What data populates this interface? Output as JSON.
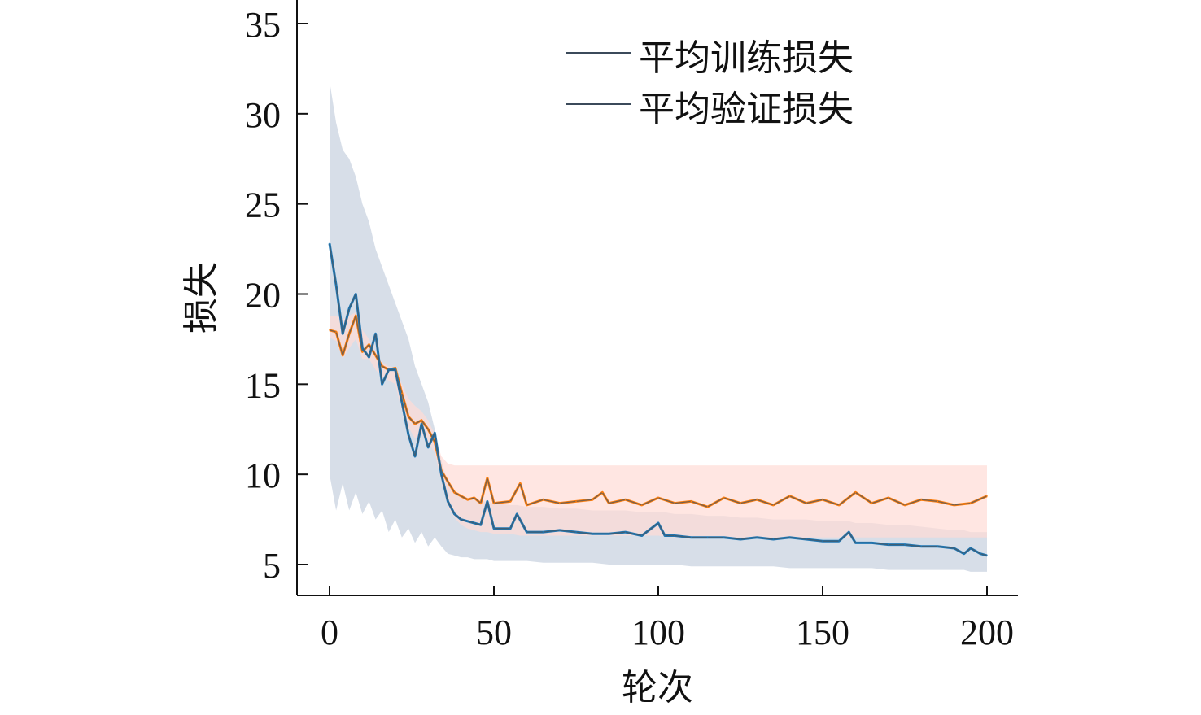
{
  "chart_data": {
    "type": "line",
    "title": "",
    "xlabel": "轮次",
    "ylabel": "损失",
    "xlim": [
      -10,
      208
    ],
    "ylim": [
      3.5,
      36.5
    ],
    "xticks": [
      0,
      50,
      100,
      150,
      200
    ],
    "yticks": [
      5,
      10,
      15,
      20,
      25,
      30,
      35
    ],
    "grid": false,
    "legend_position": "top-right",
    "series": [
      {
        "name": "平均训练损失",
        "color": "#1f77b4",
        "band_color": "#c9d3e0",
        "x": [
          0,
          2,
          4,
          6,
          8,
          10,
          12,
          14,
          16,
          18,
          20,
          22,
          24,
          26,
          28,
          30,
          32,
          34,
          36,
          38,
          40,
          42,
          44,
          46,
          48,
          50,
          55,
          57,
          60,
          65,
          70,
          75,
          80,
          85,
          90,
          95,
          100,
          102,
          105,
          110,
          115,
          120,
          125,
          130,
          135,
          140,
          145,
          150,
          155,
          158,
          160,
          165,
          170,
          175,
          180,
          185,
          190,
          193,
          195,
          198,
          200
        ],
        "values": [
          22.8,
          20.5,
          17.8,
          19.2,
          20.0,
          17.0,
          16.5,
          17.8,
          15.0,
          15.8,
          15.8,
          14.0,
          12.2,
          11.0,
          12.8,
          11.5,
          12.3,
          10.0,
          8.5,
          7.8,
          7.5,
          7.4,
          7.3,
          7.2,
          8.5,
          7.0,
          7.0,
          7.8,
          6.8,
          6.8,
          6.9,
          6.8,
          6.7,
          6.7,
          6.8,
          6.6,
          7.3,
          6.6,
          6.6,
          6.5,
          6.5,
          6.5,
          6.4,
          6.5,
          6.4,
          6.5,
          6.4,
          6.3,
          6.3,
          6.8,
          6.2,
          6.2,
          6.1,
          6.1,
          6.0,
          6.0,
          5.9,
          5.6,
          5.9,
          5.6,
          5.5
        ],
        "band_upper": [
          31.8,
          29.5,
          28.0,
          27.5,
          26.5,
          25.0,
          24.0,
          22.5,
          21.5,
          20.5,
          19.5,
          18.5,
          17.5,
          16.0,
          15.0,
          14.0,
          12.5,
          10.8,
          9.5,
          9.0,
          8.8,
          8.7,
          8.6,
          8.5,
          8.5,
          8.4,
          8.3,
          8.3,
          8.2,
          8.2,
          8.1,
          8.1,
          8.0,
          8.0,
          8.0,
          7.9,
          7.9,
          7.9,
          7.8,
          7.8,
          7.7,
          7.7,
          7.6,
          7.6,
          7.5,
          7.5,
          7.5,
          7.4,
          7.4,
          7.4,
          7.3,
          7.3,
          7.2,
          7.2,
          7.1,
          7.0,
          6.9,
          6.9,
          6.8,
          6.8,
          6.8
        ],
        "band_lower": [
          10.0,
          8.0,
          9.5,
          8.0,
          9.0,
          7.8,
          8.5,
          7.5,
          8.0,
          6.8,
          7.5,
          6.5,
          7.0,
          6.2,
          6.8,
          6.0,
          6.5,
          6.0,
          5.6,
          5.5,
          5.4,
          5.4,
          5.3,
          5.3,
          5.3,
          5.2,
          5.2,
          5.2,
          5.2,
          5.1,
          5.1,
          5.1,
          5.1,
          5.0,
          5.0,
          5.0,
          5.0,
          5.0,
          5.0,
          4.9,
          4.9,
          4.9,
          4.9,
          4.9,
          4.9,
          4.8,
          4.8,
          4.8,
          4.8,
          4.8,
          4.8,
          4.8,
          4.7,
          4.7,
          4.7,
          4.7,
          4.7,
          4.7,
          4.6,
          4.6,
          4.6
        ]
      },
      {
        "name": "平均验证损失",
        "color": "#ff7f0e",
        "band_color": "#ffdcd6",
        "x": [
          0,
          2,
          4,
          6,
          8,
          10,
          12,
          14,
          16,
          18,
          20,
          22,
          24,
          26,
          28,
          30,
          32,
          34,
          36,
          38,
          40,
          42,
          44,
          46,
          48,
          50,
          55,
          58,
          60,
          65,
          70,
          75,
          80,
          83,
          85,
          90,
          95,
          100,
          105,
          110,
          115,
          120,
          125,
          130,
          135,
          140,
          145,
          150,
          155,
          160,
          165,
          170,
          175,
          180,
          185,
          190,
          195,
          200
        ],
        "values": [
          18.0,
          17.9,
          16.6,
          17.8,
          18.8,
          16.8,
          17.2,
          16.6,
          16.0,
          15.8,
          15.9,
          14.5,
          13.2,
          12.8,
          13.0,
          12.5,
          11.8,
          10.2,
          9.6,
          9.0,
          8.8,
          8.6,
          8.7,
          8.4,
          9.8,
          8.4,
          8.5,
          9.5,
          8.3,
          8.6,
          8.4,
          8.5,
          8.6,
          9.0,
          8.4,
          8.6,
          8.3,
          8.7,
          8.4,
          8.5,
          8.2,
          8.7,
          8.4,
          8.6,
          8.3,
          8.8,
          8.4,
          8.6,
          8.3,
          9.0,
          8.4,
          8.7,
          8.3,
          8.6,
          8.5,
          8.3,
          8.4,
          8.8
        ],
        "band_upper": [
          18.8,
          18.8,
          18.6,
          18.8,
          19.0,
          18.0,
          17.5,
          16.8,
          16.2,
          16.0,
          15.9,
          15.0,
          14.2,
          13.8,
          13.5,
          13.0,
          12.2,
          11.0,
          10.6,
          10.5,
          10.5,
          10.5,
          10.5,
          10.5,
          10.5,
          10.5,
          10.5,
          10.5,
          10.5,
          10.5,
          10.5,
          10.5,
          10.5,
          10.5,
          10.5,
          10.5,
          10.5,
          10.5,
          10.5,
          10.5,
          10.5,
          10.5,
          10.5,
          10.5,
          10.5,
          10.5,
          10.5,
          10.5,
          10.5,
          10.5,
          10.5,
          10.5,
          10.5,
          10.5,
          10.5,
          10.5,
          10.5,
          10.5
        ],
        "band_lower": [
          17.6,
          17.4,
          16.4,
          17.0,
          17.5,
          16.4,
          16.4,
          15.8,
          15.4,
          15.2,
          15.0,
          13.5,
          12.6,
          12.0,
          12.2,
          11.8,
          11.2,
          9.6,
          8.2,
          7.6,
          7.2,
          7.0,
          6.9,
          6.8,
          6.8,
          6.7,
          6.7,
          6.6,
          6.6,
          6.6,
          6.6,
          6.6,
          6.6,
          6.6,
          6.6,
          6.6,
          6.6,
          6.6,
          6.5,
          6.5,
          6.5,
          6.5,
          6.5,
          6.5,
          6.5,
          6.5,
          6.5,
          6.5,
          6.5,
          6.5,
          6.5,
          6.5,
          6.5,
          6.5,
          6.5,
          6.5,
          6.5,
          6.5
        ]
      }
    ]
  }
}
